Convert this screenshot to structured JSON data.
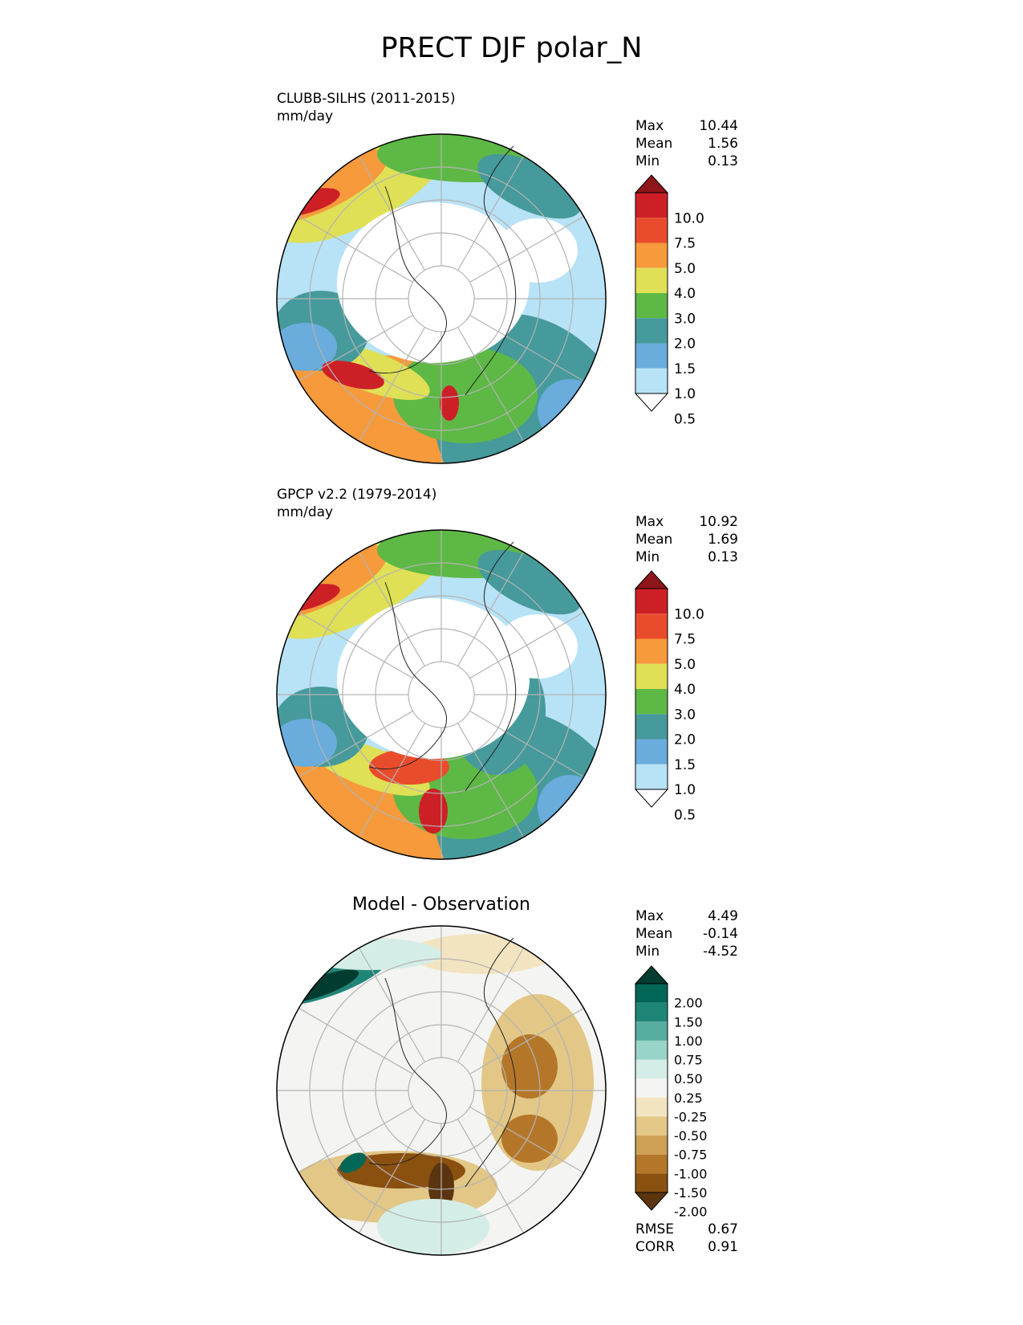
{
  "figure_title": "PRECT DJF polar_N",
  "panels": [
    {
      "id": "model",
      "title": "CLUBB-SILHS (2011-2015)",
      "units": "mm/day",
      "stats": [
        {
          "label": "Max",
          "value": "10.44"
        },
        {
          "label": "Mean",
          "value": "1.56"
        },
        {
          "label": "Min",
          "value": "0.13"
        }
      ]
    },
    {
      "id": "observation",
      "title": "GPCP v2.2 (1979-2014)",
      "units": "mm/day",
      "stats": [
        {
          "label": "Max",
          "value": "10.92"
        },
        {
          "label": "Mean",
          "value": "1.69"
        },
        {
          "label": "Min",
          "value": "0.13"
        }
      ]
    },
    {
      "id": "difference",
      "title": "Model - Observation",
      "stats": [
        {
          "label": "Max",
          "value": "4.49"
        },
        {
          "label": "Mean",
          "value": "-0.14"
        },
        {
          "label": "Min",
          "value": "-4.52"
        }
      ],
      "metrics": [
        {
          "label": "RMSE",
          "value": "0.67"
        },
        {
          "label": "CORR",
          "value": "0.91"
        }
      ]
    }
  ],
  "colorbars": {
    "precip": {
      "colors": [
        "#ffffff",
        "#b8e2f6",
        "#6aacdc",
        "#469a9b",
        "#5eb846",
        "#dfe055",
        "#f69a3c",
        "#e94c2c",
        "#cd2026",
        "#8e1519"
      ],
      "ticks": [
        "0.5",
        "1.0",
        "1.5",
        "2.0",
        "3.0",
        "4.0",
        "5.0",
        "7.5",
        "10.0"
      ]
    },
    "diff": {
      "colors": [
        "#5a3510",
        "#8a5010",
        "#b4772a",
        "#cda053",
        "#e3c787",
        "#f3e4c1",
        "#f4f4f2",
        "#d5ede7",
        "#98d4c8",
        "#57ada0",
        "#1f8577",
        "#016656",
        "#003c30"
      ],
      "ticks": [
        "-2.00",
        "-1.50",
        "-1.00",
        "-0.75",
        "-0.50",
        "-0.25",
        "0.25",
        "0.50",
        "0.75",
        "1.00",
        "1.50",
        "2.00"
      ]
    }
  }
}
